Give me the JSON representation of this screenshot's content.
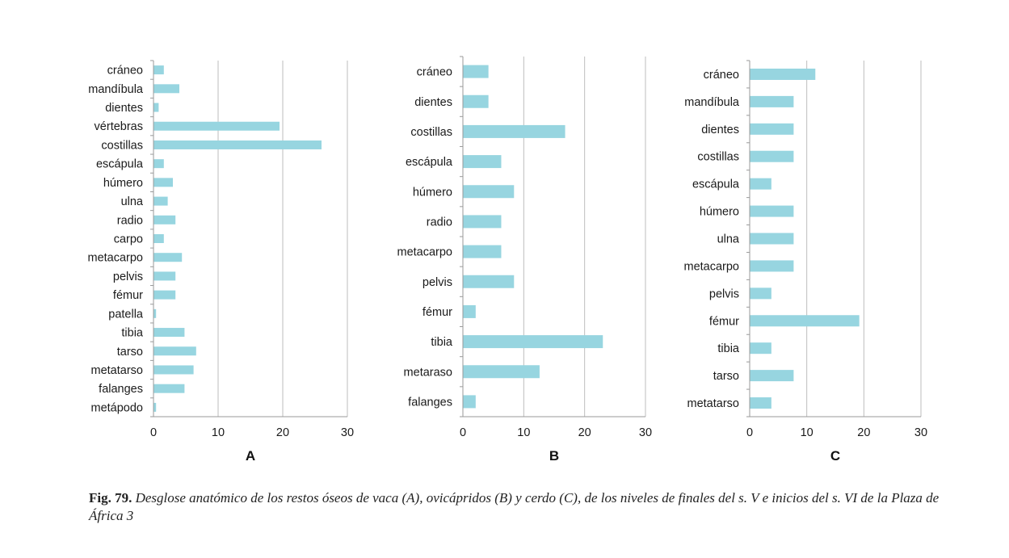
{
  "chart_data": [
    {
      "type": "bar",
      "orientation": "horizontal",
      "panel_label": "A",
      "categories": [
        "cráneo",
        "mandíbula",
        "dientes",
        "vértebras",
        "costillas",
        "escápula",
        "húmero",
        "ulna",
        "radio",
        "carpo",
        "metacarpo",
        "pelvis",
        "fémur",
        "patella",
        "tibia",
        "tarso",
        "metatarso",
        "falanges",
        "metápodo"
      ],
      "values": [
        1.6,
        4.0,
        0.8,
        19.5,
        26.0,
        1.6,
        3.0,
        2.2,
        3.4,
        1.6,
        4.4,
        3.4,
        3.4,
        0.4,
        4.8,
        6.6,
        6.2,
        4.8,
        0.4
      ],
      "xlim": [
        0,
        30
      ],
      "xticks": [
        0,
        10,
        20,
        30
      ],
      "grid": true,
      "bar_color": "#97d5e0"
    },
    {
      "type": "bar",
      "orientation": "horizontal",
      "panel_label": "B",
      "categories": [
        "cráneo",
        "dientes",
        "costillas",
        "escápula",
        "húmero",
        "radio",
        "metacarpo",
        "pelvis",
        "fémur",
        "tibia",
        "metaraso",
        "falanges"
      ],
      "values": [
        4.2,
        4.2,
        16.8,
        6.3,
        8.4,
        6.3,
        6.3,
        8.4,
        2.1,
        23.0,
        12.6,
        2.1
      ],
      "xlim": [
        0,
        30
      ],
      "xticks": [
        0,
        10,
        20,
        30
      ],
      "grid": true,
      "bar_color": "#97d5e0"
    },
    {
      "type": "bar",
      "orientation": "horizontal",
      "panel_label": "C",
      "categories": [
        "cráneo",
        "mandíbula",
        "dientes",
        "costillas",
        "escápula",
        "húmero",
        "ulna",
        "metacarpo",
        "pelvis",
        "fémur",
        "tibia",
        "tarso",
        "metatarso"
      ],
      "values": [
        11.5,
        7.7,
        7.7,
        7.7,
        3.8,
        7.7,
        7.7,
        7.7,
        3.8,
        19.2,
        3.8,
        7.7,
        3.8
      ],
      "xlim": [
        0,
        30
      ],
      "xticks": [
        0,
        10,
        20,
        30
      ],
      "grid": true,
      "bar_color": "#97d5e0"
    }
  ],
  "caption": {
    "fig_number": "Fig. 79.",
    "text": "Desglose anatómico de los restos óseos de vaca (A), ovicápridos (B) y cerdo (C), de los niveles de finales del s. V e inicios del s. VI de la Plaza de África 3"
  }
}
